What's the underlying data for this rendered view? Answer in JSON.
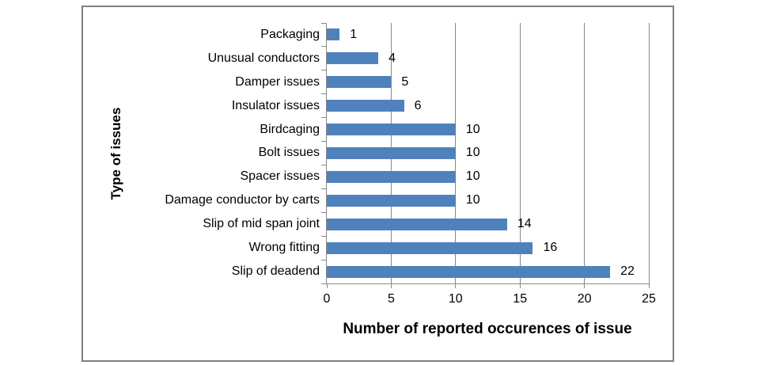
{
  "chart_data": {
    "type": "bar",
    "orientation": "horizontal",
    "title": "",
    "xlabel": "Number of reported occurences of issue",
    "ylabel": "Type of issues",
    "categories": [
      "Packaging",
      "Unusual conductors",
      "Damper issues",
      "Insulator issues",
      "Birdcaging",
      "Bolt issues",
      "Spacer issues",
      "Damage conductor by carts",
      "Slip of mid span joint",
      "Wrong fitting",
      "Slip of deadend"
    ],
    "values": [
      1,
      4,
      5,
      6,
      10,
      10,
      10,
      10,
      14,
      16,
      22
    ],
    "data_labels": [
      "1",
      "4",
      "5",
      "6",
      "10",
      "10",
      "10",
      "10",
      "14",
      "16",
      "22"
    ],
    "xlim": [
      0,
      25
    ],
    "xticks": [
      0,
      5,
      10,
      15,
      20,
      25
    ],
    "grid": "vertical",
    "legend": "none",
    "bar_color": "#4F81BD",
    "gridline_color": "#898989",
    "axis_color": "#8A8A8A",
    "frame_color": "#7F7F7F",
    "text_color": "#000000"
  }
}
